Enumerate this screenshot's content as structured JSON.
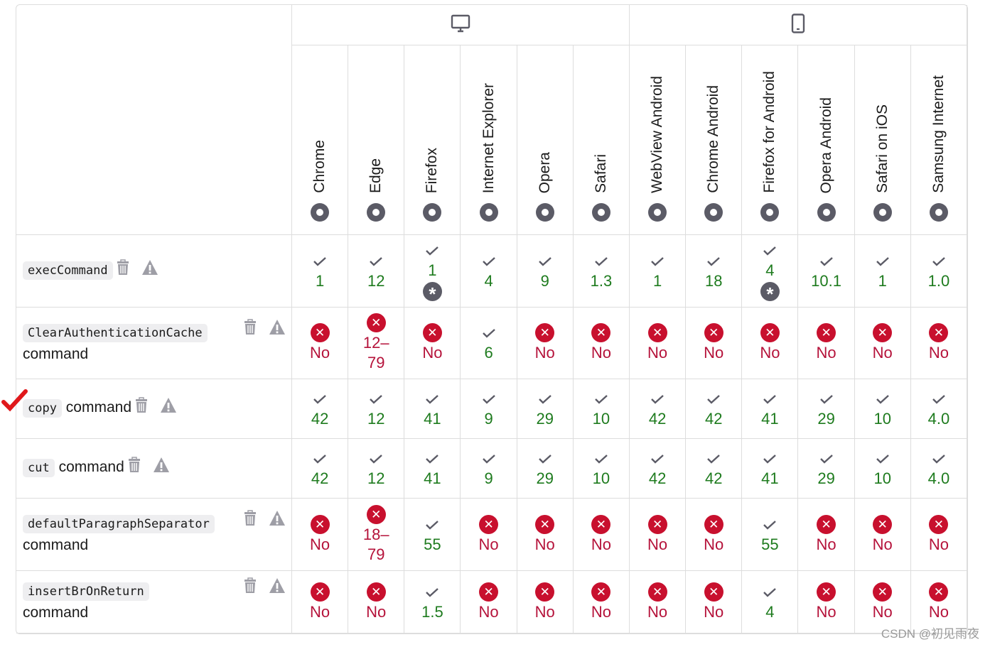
{
  "devices": [
    {
      "name": "desktop-icon",
      "span": 6
    },
    {
      "name": "mobile-icon",
      "span": 6
    }
  ],
  "browsers": [
    {
      "name": "Chrome",
      "icon": "chrome-icon"
    },
    {
      "name": "Edge",
      "icon": "edge-icon"
    },
    {
      "name": "Firefox",
      "icon": "firefox-icon"
    },
    {
      "name": "Internet Explorer",
      "icon": "internet-explorer-icon"
    },
    {
      "name": "Opera",
      "icon": "opera-icon"
    },
    {
      "name": "Safari",
      "icon": "safari-icon"
    },
    {
      "name": "WebView Android",
      "icon": "android-icon"
    },
    {
      "name": "Chrome Android",
      "icon": "chrome-icon"
    },
    {
      "name": "Firefox for Android",
      "icon": "firefox-icon"
    },
    {
      "name": "Opera Android",
      "icon": "opera-icon"
    },
    {
      "name": "Safari on iOS",
      "icon": "safari-icon"
    },
    {
      "name": "Samsung Internet",
      "icon": "samsung-internet-icon"
    }
  ],
  "rows": [
    {
      "code": "execCommand",
      "suffix": "",
      "inline_icons": true,
      "cells": [
        [
          "yes",
          "1"
        ],
        [
          "yes",
          "12"
        ],
        [
          "yes",
          "1",
          "note"
        ],
        [
          "yes",
          "4"
        ],
        [
          "yes",
          "9"
        ],
        [
          "yes",
          "1.3"
        ],
        [
          "yes",
          "1"
        ],
        [
          "yes",
          "18"
        ],
        [
          "yes",
          "4",
          "note"
        ],
        [
          "yes",
          "10.1"
        ],
        [
          "yes",
          "1"
        ],
        [
          "yes",
          "1.0"
        ]
      ]
    },
    {
      "code": "ClearAuthenticationCache",
      "suffix": "command",
      "inline_icons": false,
      "cells": [
        [
          "no",
          "No"
        ],
        [
          "no",
          "12–\n79"
        ],
        [
          "no",
          "No"
        ],
        [
          "yes",
          "6"
        ],
        [
          "no",
          "No"
        ],
        [
          "no",
          "No"
        ],
        [
          "no",
          "No"
        ],
        [
          "no",
          "No"
        ],
        [
          "no",
          "No"
        ],
        [
          "no",
          "No"
        ],
        [
          "no",
          "No"
        ],
        [
          "no",
          "No"
        ]
      ]
    },
    {
      "code": "copy",
      "suffix": "command",
      "inline_icons": true,
      "marked": true,
      "cells": [
        [
          "yes",
          "42"
        ],
        [
          "yes",
          "12"
        ],
        [
          "yes",
          "41"
        ],
        [
          "yes",
          "9"
        ],
        [
          "yes",
          "29"
        ],
        [
          "yes",
          "10"
        ],
        [
          "yes",
          "42"
        ],
        [
          "yes",
          "42"
        ],
        [
          "yes",
          "41"
        ],
        [
          "yes",
          "29"
        ],
        [
          "yes",
          "10"
        ],
        [
          "yes",
          "4.0"
        ]
      ]
    },
    {
      "code": "cut",
      "suffix": "command",
      "inline_icons": true,
      "cells": [
        [
          "yes",
          "42"
        ],
        [
          "yes",
          "12"
        ],
        [
          "yes",
          "41"
        ],
        [
          "yes",
          "9"
        ],
        [
          "yes",
          "29"
        ],
        [
          "yes",
          "10"
        ],
        [
          "yes",
          "42"
        ],
        [
          "yes",
          "42"
        ],
        [
          "yes",
          "41"
        ],
        [
          "yes",
          "29"
        ],
        [
          "yes",
          "10"
        ],
        [
          "yes",
          "4.0"
        ]
      ]
    },
    {
      "code": "defaultParagraphSeparator",
      "suffix": "command",
      "inline_icons": false,
      "cells": [
        [
          "no",
          "No"
        ],
        [
          "no",
          "18–\n79"
        ],
        [
          "yes",
          "55"
        ],
        [
          "no",
          "No"
        ],
        [
          "no",
          "No"
        ],
        [
          "no",
          "No"
        ],
        [
          "no",
          "No"
        ],
        [
          "no",
          "No"
        ],
        [
          "yes",
          "55"
        ],
        [
          "no",
          "No"
        ],
        [
          "no",
          "No"
        ],
        [
          "no",
          "No"
        ]
      ]
    },
    {
      "code": "insertBrOnReturn",
      "suffix": "command",
      "inline_icons": false,
      "cells": [
        [
          "no",
          "No"
        ],
        [
          "no",
          "No"
        ],
        [
          "yes",
          "1.5"
        ],
        [
          "no",
          "No"
        ],
        [
          "no",
          "No"
        ],
        [
          "no",
          "No"
        ],
        [
          "no",
          "No"
        ],
        [
          "no",
          "No"
        ],
        [
          "yes",
          "4"
        ],
        [
          "no",
          "No"
        ],
        [
          "no",
          "No"
        ],
        [
          "no",
          "No"
        ]
      ]
    }
  ],
  "watermark": "CSDN @初见雨夜",
  "colors": {
    "supported": "#1e7b1e",
    "unsupported": "#c8102e",
    "border": "#dddddd"
  }
}
